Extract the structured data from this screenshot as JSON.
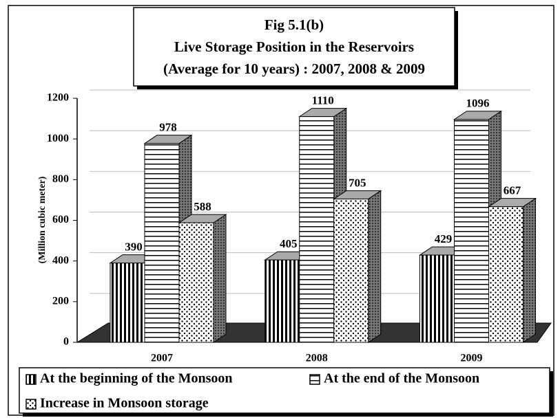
{
  "chart_data": {
    "type": "bar3d",
    "title": [
      "Fig 5.1(b)",
      "Live Storage Position in the Reservoirs",
      "(Average for 10 years) : 2007, 2008 & 2009"
    ],
    "y_label": "(Million cubic meter)",
    "categories": [
      "2007",
      "2008",
      "2009"
    ],
    "series": [
      {
        "name": "At the beginning of the Monsoon",
        "pattern": "vertical",
        "values": [
          390,
          405,
          429
        ]
      },
      {
        "name": "At the end of the Monsoon",
        "pattern": "horizontal",
        "values": [
          978,
          1110,
          1096
        ]
      },
      {
        "name": "Increase in Monsoon storage",
        "pattern": "dots",
        "values": [
          588,
          705,
          667
        ]
      }
    ],
    "ylim": [
      0,
      1200
    ],
    "yticks": [
      0,
      200,
      400,
      600,
      800,
      1000,
      1200
    ],
    "legend": "bottom",
    "grid": true
  }
}
